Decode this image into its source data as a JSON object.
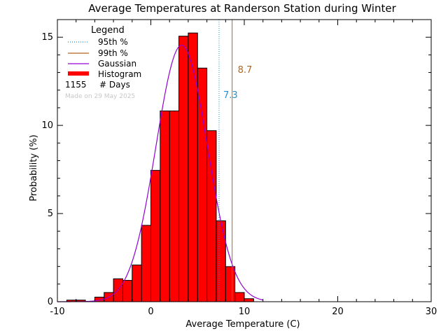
{
  "chart_data": {
    "type": "bar",
    "title": "Average Temperatures at Randerson Station during Winter",
    "xlabel": "Average Temperature (C)",
    "ylabel": "Probability  (%)",
    "xlim": [
      -10,
      30
    ],
    "ylim": [
      0,
      16
    ],
    "x_ticks": [
      -10,
      0,
      10,
      20,
      30
    ],
    "y_ticks": [
      0,
      5,
      10,
      15
    ],
    "grid": false,
    "legend_position": "top-left",
    "bin_width": 1,
    "histogram": {
      "name": "Histogram",
      "color": "#ff0000",
      "bin_left_edges": [
        -9,
        -8,
        -7,
        -6,
        -5,
        -4,
        -3,
        -2,
        -1,
        0,
        1,
        2,
        3,
        4,
        5,
        6,
        7,
        8,
        9,
        10,
        11
      ],
      "values": [
        0.09,
        0.09,
        0.0,
        0.26,
        0.52,
        1.3,
        1.21,
        2.08,
        4.33,
        7.45,
        10.82,
        10.82,
        15.06,
        15.24,
        13.25,
        9.7,
        4.59,
        1.99,
        0.52,
        0.17,
        0.0
      ]
    },
    "gaussian": {
      "name": "Gaussian",
      "color": "#9400d3",
      "mean": 3.3,
      "sigma": 2.75,
      "peak": 14.55,
      "x_range": [
        -10,
        12
      ]
    },
    "percentiles": [
      {
        "name": "95th %",
        "value": 7.3,
        "label": "7.3",
        "color": "#1f8fd6",
        "style": "dotted"
      },
      {
        "name": "99th %",
        "value": 8.7,
        "label": "8.7",
        "color": "#b5651d",
        "style": "solid"
      }
    ],
    "legend": {
      "title": "Legend",
      "days_count": "1155",
      "days_label": "# Days"
    },
    "made_on": "Made on 29 May 2025"
  }
}
